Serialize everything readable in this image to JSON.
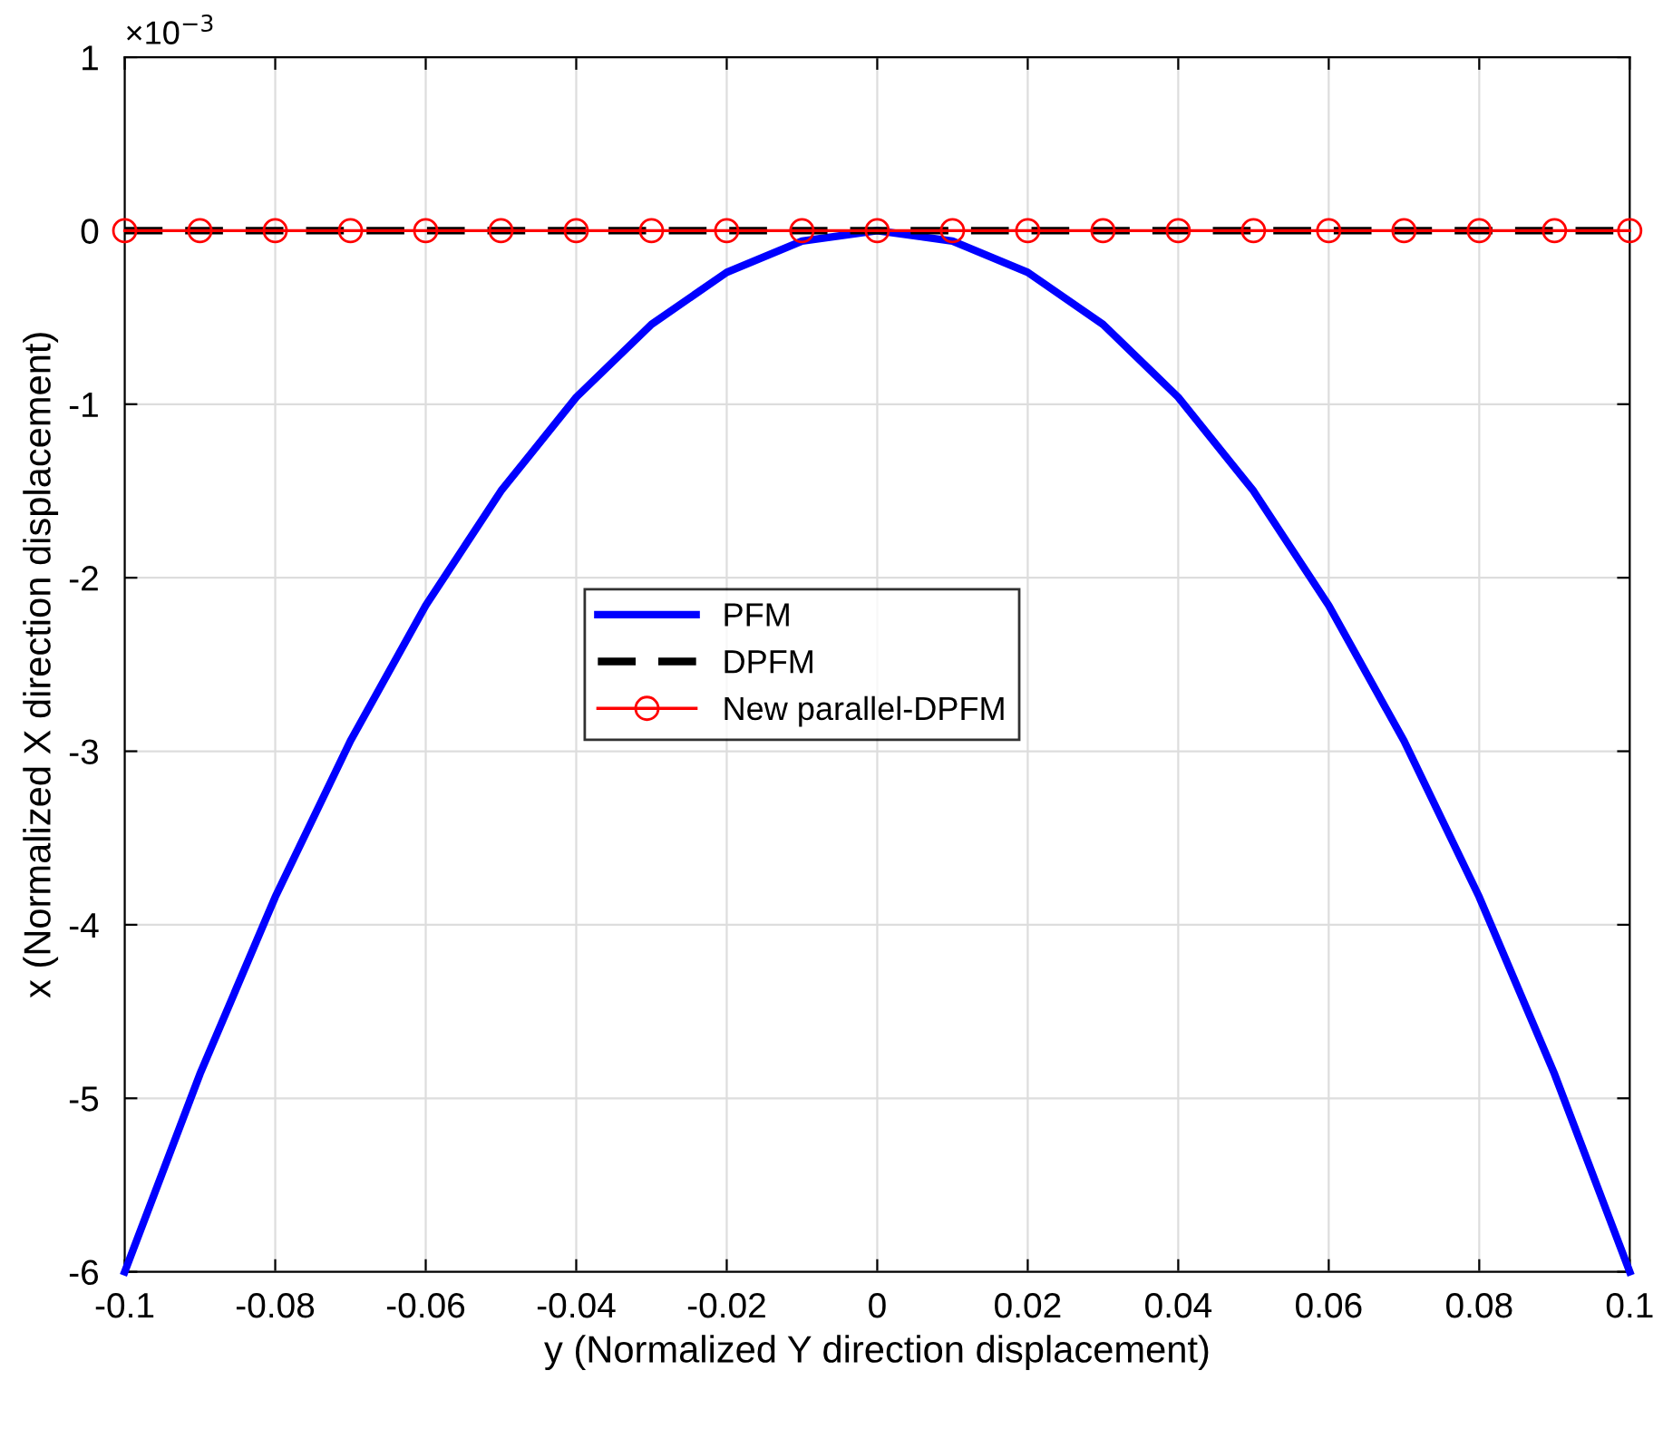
{
  "chart_data": {
    "type": "line",
    "xlabel": "y (Normalized Y direction displacement)",
    "ylabel": "x (Normalized X direction displacement)",
    "annotations": [
      "×10$^{−3}$"
    ],
    "x": [
      -0.1,
      -0.09,
      -0.08,
      -0.07,
      -0.06,
      -0.05,
      -0.04,
      -0.03,
      -0.02,
      -0.01,
      0,
      0.01,
      0.02,
      0.03,
      0.04,
      0.05,
      0.06,
      0.07,
      0.08,
      0.09,
      0.1
    ],
    "series": [
      {
        "name": "PFM",
        "color": "#0000ff",
        "line_style": "solid",
        "marker": "none",
        "values": [
          -6,
          -4.86,
          -3.84,
          -2.94,
          -2.16,
          -1.5,
          -0.96,
          -0.54,
          -0.24,
          -0.06,
          0,
          -0.06,
          -0.24,
          -0.54,
          -0.96,
          -1.5,
          -2.16,
          -2.94,
          -3.84,
          -4.86,
          -6
        ]
      },
      {
        "name": "DPFM",
        "color": "#000000",
        "line_style": "dashed",
        "marker": "none",
        "values": [
          0,
          0,
          0,
          0,
          0,
          0,
          0,
          0,
          0,
          0,
          0,
          0,
          0,
          0,
          0,
          0,
          0,
          0,
          0,
          0,
          0
        ]
      },
      {
        "name": "New parallel-DPFM",
        "color": "#ff0000",
        "line_style": "solid",
        "marker": "circle",
        "values": [
          0,
          0,
          0,
          0,
          0,
          0,
          0,
          0,
          0,
          0,
          0,
          0,
          0,
          0,
          0,
          0,
          0,
          0,
          0,
          0,
          0
        ]
      }
    ],
    "xlim": [
      -0.1,
      0.1
    ],
    "xticks": [
      -0.1,
      -0.08,
      -0.06,
      -0.04,
      -0.02,
      0,
      0.02,
      0.04,
      0.06,
      0.08,
      0.1
    ],
    "ylim": [
      -6,
      1
    ],
    "yticks": [
      -6,
      -5,
      -4,
      -3,
      -2,
      -1,
      0,
      1
    ],
    "grid": true,
    "legend": "center"
  }
}
